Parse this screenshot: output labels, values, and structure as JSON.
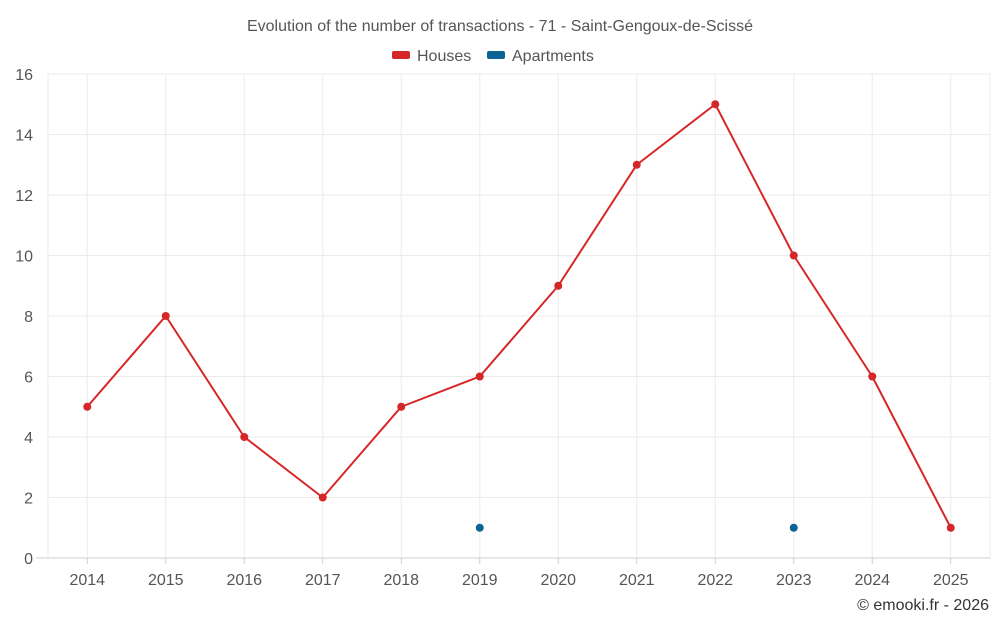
{
  "chart_data": {
    "type": "line",
    "title": "Evolution of the number of transactions - 71 - Saint-Gengoux-de-Scissé",
    "categories": [
      "2014",
      "2015",
      "2016",
      "2017",
      "2018",
      "2019",
      "2020",
      "2021",
      "2022",
      "2023",
      "2024",
      "2025"
    ],
    "ylim": [
      0,
      16
    ],
    "yticks": [
      0,
      2,
      4,
      6,
      8,
      10,
      12,
      14,
      16
    ],
    "grid": true,
    "legend_position": "top-center",
    "xlabel": "",
    "ylabel": "",
    "series": [
      {
        "name": "Houses",
        "color": "#d62728",
        "style": "line-markers",
        "values": [
          5,
          8,
          4,
          2,
          5,
          6,
          9,
          13,
          15,
          10,
          6,
          1
        ]
      },
      {
        "name": "Apartments",
        "color": "#0a6494",
        "style": "markers",
        "values": [
          null,
          null,
          null,
          null,
          null,
          1,
          null,
          null,
          null,
          1,
          null,
          null
        ]
      }
    ]
  },
  "credit": "© emooki.fr - 2026"
}
